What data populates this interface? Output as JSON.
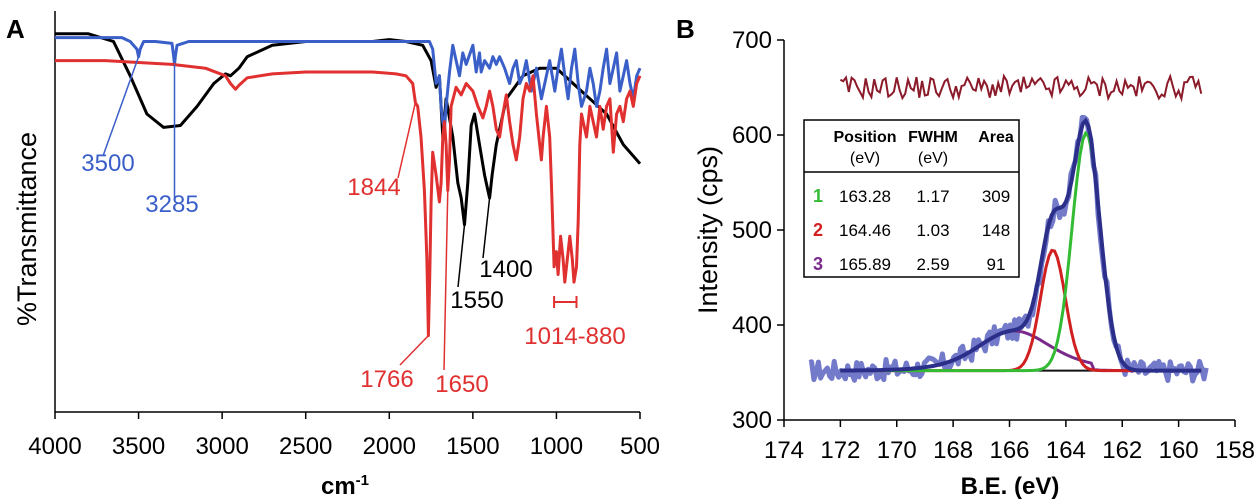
{
  "chart_data": [
    {
      "panel": "A",
      "type": "line",
      "xlabel": "cm",
      "xlabel_sup": "-1",
      "ylabel": "%Transmittance",
      "xlim": [
        4000,
        500
      ],
      "xticks": [
        "4000",
        "3500",
        "3000",
        "2500",
        "2000",
        "1500",
        "1000",
        "500"
      ],
      "ylim": [
        0,
        100
      ],
      "colors": [
        "#000000",
        "#3a5fc8",
        "#e03030"
      ],
      "series": [
        {
          "color": "#000000",
          "points": [
            [
              4000,
              99
            ],
            [
              3800,
              99
            ],
            [
              3650,
              97
            ],
            [
              3550,
              88
            ],
            [
              3450,
              78
            ],
            [
              3350,
              74.5
            ],
            [
              3250,
              75
            ],
            [
              3150,
              80
            ],
            [
              3050,
              86
            ],
            [
              2980,
              88.5
            ],
            [
              2950,
              88
            ],
            [
              2900,
              90
            ],
            [
              2850,
              93
            ],
            [
              2700,
              96
            ],
            [
              2500,
              97
            ],
            [
              2300,
              97
            ],
            [
              2100,
              97
            ],
            [
              2000,
              97.5
            ],
            [
              1900,
              97
            ],
            [
              1800,
              96
            ],
            [
              1750,
              92
            ],
            [
              1720,
              85
            ],
            [
              1700,
              88
            ],
            [
              1680,
              72
            ],
            [
              1660,
              82
            ],
            [
              1620,
              72
            ],
            [
              1590,
              60
            ],
            [
              1570,
              56
            ],
            [
              1550,
              49
            ],
            [
              1530,
              60
            ],
            [
              1510,
              75
            ],
            [
              1490,
              78
            ],
            [
              1460,
              70
            ],
            [
              1430,
              62
            ],
            [
              1410,
              58
            ],
            [
              1400,
              56
            ],
            [
              1385,
              62
            ],
            [
              1360,
              70
            ],
            [
              1300,
              82
            ],
            [
              1200,
              88
            ],
            [
              1100,
              90
            ],
            [
              1000,
              90
            ],
            [
              900,
              86
            ],
            [
              800,
              82
            ],
            [
              700,
              78
            ],
            [
              600,
              70
            ],
            [
              500,
              65
            ]
          ]
        },
        {
          "color": "#3a5fc8",
          "points": [
            [
              4000,
              98
            ],
            [
              3600,
              98
            ],
            [
              3550,
              97
            ],
            [
              3510,
              95
            ],
            [
              3500,
              93
            ],
            [
              3490,
              95
            ],
            [
              3470,
              97
            ],
            [
              3400,
              97
            ],
            [
              3300,
              96.5
            ],
            [
              3290,
              93
            ],
            [
              3285,
              91
            ],
            [
              3280,
              93
            ],
            [
              3270,
              96
            ],
            [
              3200,
              97
            ],
            [
              3000,
              97
            ],
            [
              2500,
              97
            ],
            [
              2000,
              97
            ],
            [
              1800,
              97
            ],
            [
              1760,
              97
            ],
            [
              1740,
              95
            ],
            [
              1720,
              86
            ],
            [
              1700,
              88
            ],
            [
              1690,
              80
            ],
            [
              1680,
              76
            ],
            [
              1670,
              74
            ],
            [
              1660,
              80
            ],
            [
              1640,
              89
            ],
            [
              1620,
              96
            ],
            [
              1600,
              92
            ],
            [
              1580,
              88
            ],
            [
              1560,
              94
            ],
            [
              1540,
              91
            ],
            [
              1500,
              96
            ],
            [
              1480,
              89
            ],
            [
              1460,
              94
            ],
            [
              1450,
              89
            ],
            [
              1430,
              92
            ],
            [
              1400,
              90
            ],
            [
              1380,
              93
            ],
            [
              1360,
              91
            ],
            [
              1340,
              93
            ],
            [
              1310,
              90
            ],
            [
              1280,
              86
            ],
            [
              1260,
              90
            ],
            [
              1240,
              92
            ],
            [
              1220,
              86
            ],
            [
              1200,
              88
            ],
            [
              1180,
              92
            ],
            [
              1150,
              84
            ],
            [
              1120,
              90
            ],
            [
              1090,
              82
            ],
            [
              1060,
              88
            ],
            [
              1040,
              92
            ],
            [
              1010,
              84
            ],
            [
              990,
              90
            ],
            [
              970,
              95
            ],
            [
              950,
              88
            ],
            [
              930,
              82
            ],
            [
              910,
              90
            ],
            [
              890,
              95
            ],
            [
              870,
              86
            ],
            [
              850,
              80
            ],
            [
              820,
              84
            ],
            [
              800,
              90
            ],
            [
              780,
              86
            ],
            [
              760,
              80
            ],
            [
              740,
              84
            ],
            [
              720,
              90
            ],
            [
              700,
              95
            ],
            [
              680,
              86
            ],
            [
              660,
              90
            ],
            [
              640,
              94
            ],
            [
              620,
              84
            ],
            [
              600,
              88
            ],
            [
              580,
              92
            ],
            [
              560,
              86
            ],
            [
              540,
              82
            ],
            [
              520,
              88
            ],
            [
              500,
              90
            ]
          ]
        },
        {
          "color": "#e03030",
          "points": [
            [
              4000,
              92
            ],
            [
              3700,
              92
            ],
            [
              3500,
              91.5
            ],
            [
              3300,
              91
            ],
            [
              3100,
              90
            ],
            [
              2980,
              88
            ],
            [
              2950,
              86
            ],
            [
              2920,
              84.5
            ],
            [
              2900,
              85.5
            ],
            [
              2850,
              87.5
            ],
            [
              2700,
              88.5
            ],
            [
              2500,
              89
            ],
            [
              2300,
              89
            ],
            [
              2100,
              89
            ],
            [
              1960,
              88.5
            ],
            [
              1900,
              88
            ],
            [
              1860,
              86
            ],
            [
              1844,
              81
            ],
            [
              1830,
              80
            ],
            [
              1810,
              72
            ],
            [
              1790,
              58
            ],
            [
              1775,
              40
            ],
            [
              1766,
              20
            ],
            [
              1758,
              35
            ],
            [
              1750,
              55
            ],
            [
              1740,
              68
            ],
            [
              1720,
              62
            ],
            [
              1700,
              55
            ],
            [
              1690,
              60
            ],
            [
              1680,
              72
            ],
            [
              1670,
              76
            ],
            [
              1660,
              70
            ],
            [
              1650,
              58
            ],
            [
              1640,
              66
            ],
            [
              1630,
              80
            ],
            [
              1600,
              85
            ],
            [
              1570,
              83
            ],
            [
              1540,
              86
            ],
            [
              1500,
              84
            ],
            [
              1470,
              80
            ],
            [
              1440,
              77
            ],
            [
              1420,
              80
            ],
            [
              1400,
              84
            ],
            [
              1380,
              80
            ],
            [
              1360,
              74
            ],
            [
              1340,
              72
            ],
            [
              1320,
              78
            ],
            [
              1300,
              83
            ],
            [
              1280,
              76
            ],
            [
              1260,
              70
            ],
            [
              1240,
              66
            ],
            [
              1220,
              72
            ],
            [
              1200,
              82
            ],
            [
              1180,
              86
            ],
            [
              1160,
              84
            ],
            [
              1140,
              88
            ],
            [
              1120,
              78
            ],
            [
              1100,
              70
            ],
            [
              1090,
              66
            ],
            [
              1080,
              72
            ],
            [
              1060,
              80
            ],
            [
              1040,
              72
            ],
            [
              1030,
              60
            ],
            [
              1014,
              38
            ],
            [
              1000,
              42
            ],
            [
              990,
              36
            ],
            [
              975,
              46
            ],
            [
              960,
              40
            ],
            [
              950,
              34
            ],
            [
              935,
              40
            ],
            [
              920,
              46
            ],
            [
              905,
              40
            ],
            [
              895,
              34
            ],
            [
              880,
              38
            ],
            [
              870,
              50
            ],
            [
              860,
              70
            ],
            [
              850,
              78
            ],
            [
              820,
              72
            ],
            [
              800,
              80
            ],
            [
              780,
              76
            ],
            [
              760,
              72
            ],
            [
              740,
              80
            ],
            [
              720,
              74
            ],
            [
              700,
              80
            ],
            [
              680,
              82
            ],
            [
              660,
              68
            ],
            [
              640,
              78
            ],
            [
              620,
              80
            ],
            [
              600,
              76
            ],
            [
              580,
              82
            ],
            [
              560,
              84
            ],
            [
              540,
              80
            ],
            [
              520,
              86
            ],
            [
              500,
              88
            ]
          ]
        }
      ],
      "annotations": [
        {
          "text": "3500",
          "color": "#3a5fc8",
          "peak": 3500
        },
        {
          "text": "3285",
          "color": "#3a5fc8",
          "peak": 3285
        },
        {
          "text": "1844",
          "color": "#e03030",
          "peak": 1844
        },
        {
          "text": "1766",
          "color": "#e03030",
          "peak": 1766
        },
        {
          "text": "1650",
          "color": "#e03030",
          "peak": 1650
        },
        {
          "text": "1550",
          "color": "#000000",
          "peak": 1550
        },
        {
          "text": "1400",
          "color": "#000000",
          "peak": 1400
        },
        {
          "text": "1014-880",
          "color": "#e03030",
          "range": [
            1014,
            880
          ]
        }
      ]
    },
    {
      "panel": "B",
      "type": "line",
      "xlabel": "B.E. (eV)",
      "ylabel": "Intensity (cps)",
      "xlim": [
        174,
        158
      ],
      "ylim": [
        300,
        700
      ],
      "xticks": [
        174,
        172,
        170,
        168,
        166,
        164,
        162,
        160,
        158
      ],
      "yticks": [
        300,
        400,
        500,
        600,
        700
      ],
      "colors": {
        "raw": "#5a63c0",
        "fit": "#2b2f8a",
        "baseline": "#111111",
        "peak1": "#33bb33",
        "peak2": "#d02020",
        "peak3": "#7a2a8a",
        "residual": "#8b1a2a"
      },
      "components": [
        {
          "id": "1",
          "position": 163.28,
          "fwhm": 1.17,
          "area": 309,
          "color": "#33bb33"
        },
        {
          "id": "2",
          "position": 164.46,
          "fwhm": 1.03,
          "area": 148,
          "color": "#d02020"
        },
        {
          "id": "3",
          "position": 165.89,
          "fwhm": 2.59,
          "area": 91,
          "color": "#7a2a8a"
        }
      ],
      "baseline_level": 352,
      "residual_level": 650,
      "table": {
        "headers": [
          "Position",
          "FWHM",
          "Area"
        ],
        "units": [
          "(eV)",
          "(eV)",
          ""
        ],
        "rows": [
          {
            "id": "1",
            "cells": [
              "163.28",
              "1.17",
              "309"
            ],
            "color": "#33bb33"
          },
          {
            "id": "2",
            "cells": [
              "164.46",
              "1.03",
              "148"
            ],
            "color": "#d02020"
          },
          {
            "id": "3",
            "cells": [
              "165.89",
              "2.59",
              "91"
            ],
            "color": "#7a2a8a"
          }
        ]
      }
    }
  ]
}
